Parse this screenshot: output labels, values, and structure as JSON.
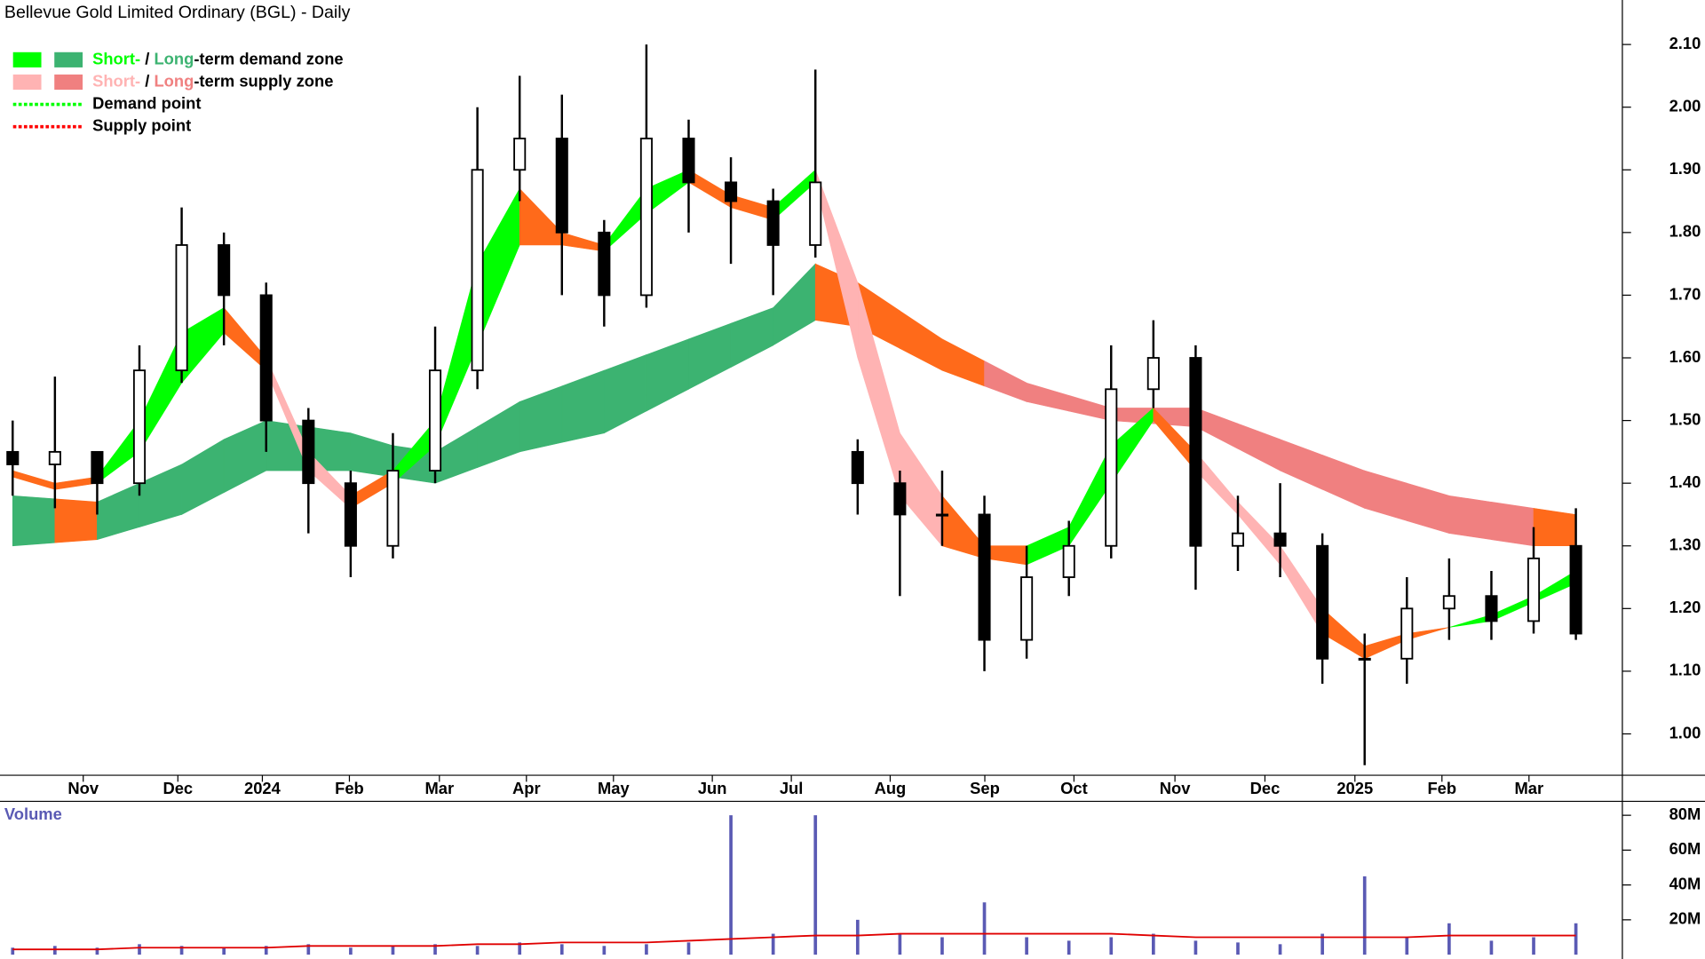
{
  "chart_data": {
    "type": "candlestick",
    "title": "Bellevue Gold Limited Ordinary (BGL) - Daily",
    "legend": [
      {
        "short": "Short-",
        "sep": " / ",
        "long": "Long",
        "rest": "-term demand zone",
        "short_color": "#00ff00",
        "long_color": "#3cb371"
      },
      {
        "short": "Short-",
        "sep": " / ",
        "long": "Long",
        "rest": "-term supply zone",
        "short_color": "#ffb3b3",
        "long_color": "#f08080"
      },
      {
        "label": "Demand point",
        "color": "#00ff00"
      },
      {
        "label": "Supply point",
        "color": "#ff0000"
      }
    ],
    "x": [
      0,
      1,
      2,
      3,
      4,
      5,
      6,
      7,
      8,
      9,
      10,
      11,
      12,
      13,
      14,
      15,
      16,
      17,
      18,
      19,
      20,
      21,
      22,
      23,
      24,
      25,
      26,
      27,
      28,
      29,
      30,
      31,
      32,
      33,
      34,
      35,
      36,
      37
    ],
    "open": [
      1.45,
      1.43,
      1.45,
      1.4,
      1.58,
      1.78,
      1.7,
      1.5,
      1.4,
      1.3,
      1.42,
      1.58,
      1.9,
      1.95,
      1.8,
      1.7,
      1.95,
      1.88,
      1.85,
      1.78,
      1.45,
      1.4,
      1.35,
      1.35,
      1.15,
      1.25,
      1.3,
      1.55,
      1.6,
      1.3,
      1.32,
      1.3,
      1.12,
      1.12,
      1.2,
      1.22,
      1.18,
      1.3
    ],
    "high": [
      1.5,
      1.57,
      1.45,
      1.62,
      1.84,
      1.8,
      1.72,
      1.52,
      1.42,
      1.48,
      1.65,
      2.0,
      2.05,
      2.02,
      1.82,
      2.1,
      1.98,
      1.92,
      1.87,
      2.06,
      1.47,
      1.42,
      1.42,
      1.38,
      1.3,
      1.34,
      1.62,
      1.66,
      1.62,
      1.38,
      1.4,
      1.32,
      1.16,
      1.25,
      1.28,
      1.26,
      1.33,
      1.36
    ],
    "low": [
      1.38,
      1.36,
      1.35,
      1.38,
      1.56,
      1.62,
      1.45,
      1.32,
      1.25,
      1.28,
      1.4,
      1.55,
      1.85,
      1.7,
      1.65,
      1.68,
      1.8,
      1.75,
      1.7,
      1.76,
      1.35,
      1.22,
      1.3,
      1.1,
      1.12,
      1.22,
      1.28,
      1.52,
      1.23,
      1.26,
      1.25,
      1.08,
      0.95,
      1.08,
      1.15,
      1.15,
      1.16,
      1.15
    ],
    "close": [
      1.43,
      1.45,
      1.4,
      1.58,
      1.78,
      1.7,
      1.5,
      1.4,
      1.3,
      1.42,
      1.58,
      1.9,
      1.95,
      1.8,
      1.7,
      1.95,
      1.88,
      1.85,
      1.78,
      1.88,
      1.4,
      1.35,
      1.35,
      1.15,
      1.25,
      1.3,
      1.55,
      1.6,
      1.3,
      1.32,
      1.3,
      1.12,
      1.12,
      1.2,
      1.22,
      1.18,
      1.28,
      1.16
    ],
    "up_color": "#ffffff",
    "down_color": "#000000",
    "xlim": [
      -0.3,
      38.1
    ],
    "xticks": [
      {
        "value": 1.67,
        "label": "Nov"
      },
      {
        "value": 3.91,
        "label": "Dec"
      },
      {
        "value": 5.91,
        "label": "2024"
      },
      {
        "value": 7.97,
        "label": "Feb"
      },
      {
        "value": 10.1,
        "label": "Mar"
      },
      {
        "value": 12.16,
        "label": "Apr"
      },
      {
        "value": 14.22,
        "label": "May"
      },
      {
        "value": 16.56,
        "label": "Jun"
      },
      {
        "value": 18.43,
        "label": "Jul"
      },
      {
        "value": 20.77,
        "label": "Aug"
      },
      {
        "value": 23.01,
        "label": "Sep"
      },
      {
        "value": 25.12,
        "label": "Oct"
      },
      {
        "value": 27.51,
        "label": "Nov"
      },
      {
        "value": 29.64,
        "label": "Dec"
      },
      {
        "value": 31.77,
        "label": "2025"
      },
      {
        "value": 33.83,
        "label": "Feb"
      },
      {
        "value": 35.89,
        "label": "Mar"
      }
    ],
    "ylim": [
      0.934,
      2.171
    ],
    "yticks": [
      {
        "value": 1.0,
        "label": "1.00"
      },
      {
        "value": 1.1,
        "label": "1.10"
      },
      {
        "value": 1.2,
        "label": "1.20"
      },
      {
        "value": 1.3,
        "label": "1.30"
      },
      {
        "value": 1.4,
        "label": "1.40"
      },
      {
        "value": 1.5,
        "label": "1.50"
      },
      {
        "value": 1.6,
        "label": "1.60"
      },
      {
        "value": 1.7,
        "label": "1.70"
      },
      {
        "value": 1.8,
        "label": "1.80"
      },
      {
        "value": 1.9,
        "label": "1.90"
      },
      {
        "value": 2.0,
        "label": "2.00"
      },
      {
        "value": 2.1,
        "label": "2.10"
      }
    ],
    "long_zone": {
      "upper": [
        1.38,
        1.375,
        1.37,
        1.4,
        1.43,
        1.47,
        1.5,
        1.49,
        1.48,
        1.46,
        1.45,
        1.49,
        1.53,
        1.555,
        1.58,
        1.605,
        1.63,
        1.655,
        1.68,
        1.75,
        1.72,
        1.675,
        1.63,
        1.595,
        1.56,
        1.54,
        1.52,
        1.52,
        1.52,
        1.495,
        1.47,
        1.445,
        1.42,
        1.4,
        1.38,
        1.37,
        1.36,
        1.35
      ],
      "lower": [
        1.3,
        1.305,
        1.31,
        1.33,
        1.35,
        1.385,
        1.42,
        1.42,
        1.42,
        1.41,
        1.4,
        1.425,
        1.45,
        1.465,
        1.48,
        1.515,
        1.55,
        1.585,
        1.62,
        1.66,
        1.65,
        1.615,
        1.58,
        1.555,
        1.53,
        1.515,
        1.5,
        1.495,
        1.49,
        1.455,
        1.42,
        1.39,
        1.36,
        1.34,
        1.32,
        1.31,
        1.3,
        1.3
      ],
      "colors": [
        "#3cb371",
        "#ff6a1a",
        "#3cb371",
        "#3cb371",
        "#3cb371",
        "#3cb371",
        "#3cb371",
        "#3cb371",
        "#3cb371",
        "#3cb371",
        "#3cb371",
        "#3cb371",
        "#3cb371",
        "#3cb371",
        "#3cb371",
        "#3cb371",
        "#3cb371",
        "#3cb371",
        "#3cb371",
        "#ff6a1a",
        "#ff6a1a",
        "#ff6a1a",
        "#ff6a1a",
        "#f08080",
        "#f08080",
        "#f08080",
        "#f08080",
        "#f08080",
        "#f08080",
        "#f08080",
        "#f08080",
        "#f08080",
        "#f08080",
        "#f08080",
        "#f08080",
        "#f08080",
        "#ff6a1a"
      ]
    },
    "short_zone": {
      "upper": [
        1.42,
        1.4,
        1.41,
        1.5,
        1.64,
        1.68,
        1.6,
        1.45,
        1.38,
        1.42,
        1.5,
        1.75,
        1.87,
        1.8,
        1.78,
        1.87,
        1.9,
        1.86,
        1.84,
        1.9,
        1.72,
        1.48,
        1.38,
        1.3,
        1.3,
        1.33,
        1.46,
        1.52,
        1.45,
        1.37,
        1.3,
        1.2,
        1.14,
        1.16,
        1.17,
        1.19,
        1.22,
        1.26
      ],
      "lower": [
        1.41,
        1.39,
        1.4,
        1.45,
        1.56,
        1.64,
        1.58,
        1.42,
        1.36,
        1.4,
        1.46,
        1.62,
        1.78,
        1.78,
        1.77,
        1.83,
        1.88,
        1.84,
        1.82,
        1.88,
        1.6,
        1.38,
        1.3,
        1.28,
        1.27,
        1.3,
        1.4,
        1.5,
        1.42,
        1.35,
        1.27,
        1.16,
        1.12,
        1.15,
        1.17,
        1.18,
        1.21,
        1.24
      ],
      "colors": [
        "#ff6a1a",
        "#ff6a1a",
        "#00ff00",
        "#00ff00",
        "#00ff00",
        "#ff6a1a",
        "#ffb3b3",
        "#ffb3b3",
        "#ff6a1a",
        "#00ff00",
        "#00ff00",
        "#00ff00",
        "#ff6a1a",
        "#ff6a1a",
        "#00ff00",
        "#00ff00",
        "#ff6a1a",
        "#ff6a1a",
        "#00ff00",
        "#ffb3b3",
        "#ffb3b3",
        "#ffb3b3",
        "#ff6a1a",
        "#ff6a1a",
        "#00ff00",
        "#00ff00",
        "#00ff00",
        "#ff6a1a",
        "#ffb3b3",
        "#ffb3b3",
        "#ffb3b3",
        "#ff6a1a",
        "#ff6a1a",
        "#ff6a1a",
        "#00ff00",
        "#00ff00",
        "#00ff00"
      ]
    },
    "volume": {
      "label": "Volume",
      "values": [
        4,
        5,
        4,
        6,
        5,
        4,
        5,
        6,
        4,
        5,
        6,
        5,
        7,
        6,
        5,
        6,
        7,
        80,
        12,
        80,
        20,
        12,
        10,
        30,
        10,
        8,
        10,
        12,
        8,
        7,
        6,
        12,
        45,
        10,
        18,
        8,
        10,
        18
      ],
      "average": [
        3,
        3,
        3,
        4,
        4,
        4,
        4,
        5,
        5,
        5,
        5,
        6,
        6,
        7,
        7,
        7,
        8,
        9,
        10,
        11,
        11,
        12,
        12,
        12,
        12,
        12,
        12,
        11,
        10,
        10,
        10,
        10,
        10,
        10,
        11,
        11,
        11,
        11
      ],
      "color": "#5a5ab4",
      "average_color": "#e00000",
      "ylim": [
        0,
        88
      ],
      "yticks": [
        {
          "value": 20,
          "label": "20M"
        },
        {
          "value": 40,
          "label": "40M"
        },
        {
          "value": 60,
          "label": "60M"
        },
        {
          "value": 80,
          "label": "80M"
        }
      ]
    }
  }
}
